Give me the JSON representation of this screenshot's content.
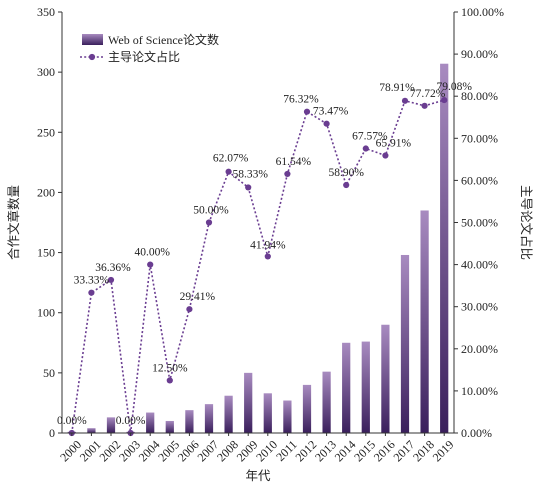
{
  "chart_data": {
    "type": "bar+line",
    "xlabel": "年代",
    "ylabel_left": "合作文章数量",
    "ylabel_right": "主导论文占比",
    "categories": [
      "2000",
      "2001",
      "2002",
      "2003",
      "2004",
      "2005",
      "2006",
      "2007",
      "2008",
      "2009",
      "2010",
      "2011",
      "2012",
      "2013",
      "2014",
      "2015",
      "2016",
      "2017",
      "2018",
      "2019"
    ],
    "left_axis": {
      "min": 0,
      "max": 350,
      "ticks": [
        0,
        50,
        100,
        150,
        200,
        250,
        300,
        350
      ]
    },
    "right_axis": {
      "min": 0,
      "max": 100,
      "ticks": [
        "0.00%",
        "10.00%",
        "20.00%",
        "30.00%",
        "40.00%",
        "50.00%",
        "60.00%",
        "70.00%",
        "80.00%",
        "90.00%",
        "100.00%"
      ]
    },
    "series": [
      {
        "name": "Web of Science论文数",
        "kind": "bar",
        "axis": "left",
        "values": [
          1,
          4,
          13,
          1,
          17,
          10,
          19,
          24,
          31,
          50,
          33,
          27,
          40,
          51,
          75,
          76,
          90,
          148,
          185,
          307
        ]
      },
      {
        "name": "主导论文占比",
        "kind": "line",
        "axis": "right",
        "values": [
          0.0,
          33.33,
          36.36,
          0.0,
          40.0,
          12.5,
          29.41,
          50.0,
          62.07,
          58.33,
          41.94,
          61.54,
          76.32,
          73.47,
          58.9,
          67.57,
          65.91,
          78.91,
          77.72,
          79.08
        ],
        "labels": [
          "0.00%",
          "33.33%",
          "36.36%",
          "0.00%",
          "40.00%",
          "12.50%",
          "29.41%",
          "50.00%",
          "62.07%",
          "58.33%",
          "41.94%",
          "61.54%",
          "76.32%",
          "73.47%",
          "58.90%",
          "67.57%",
          "65.91%",
          "78.91%",
          "77.72%",
          "79.08%"
        ],
        "labelled": [
          true,
          true,
          true,
          true,
          true,
          true,
          true,
          true,
          true,
          true,
          true,
          true,
          true,
          true,
          true,
          true,
          true,
          true,
          true,
          true
        ]
      }
    ],
    "legend_position": "top-left",
    "grid": false,
    "colors": {
      "bar_top": "#a88bc0",
      "bar_bottom": "#3a1f5c",
      "line": "#6a3d91",
      "axis": "#333333"
    }
  }
}
